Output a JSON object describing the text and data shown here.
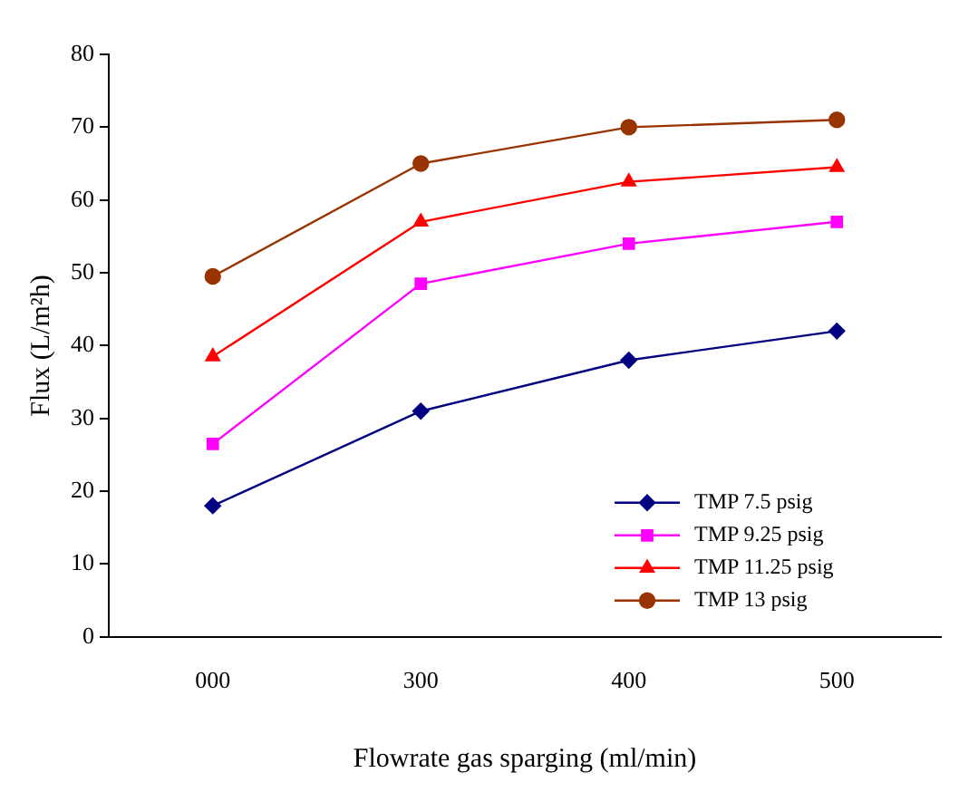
{
  "chart_data": {
    "type": "line",
    "xlabel": "Flowrate gas sparging (ml/min)",
    "ylabel": "Flux (L/m²h)",
    "categories": [
      "000",
      "300",
      "400",
      "500"
    ],
    "series": [
      {
        "name": "TMP 7.5 psig",
        "color": "#000080",
        "marker": "diamond",
        "values": [
          18,
          31,
          38,
          42
        ]
      },
      {
        "name": "TMP 9.25 psig",
        "color": "#ff00ff",
        "marker": "square",
        "values": [
          26.5,
          48.5,
          54,
          57
        ]
      },
      {
        "name": "TMP 11.25 psig",
        "color": "#ff0000",
        "marker": "triangle",
        "values": [
          38.5,
          57,
          62.5,
          64.5
        ]
      },
      {
        "name": "TMP 13 psig",
        "color": "#993300",
        "marker": "circle",
        "values": [
          49.5,
          65,
          70,
          71
        ]
      }
    ],
    "ylim": [
      0,
      80
    ],
    "yticks": [
      0,
      10,
      20,
      30,
      40,
      50,
      60,
      70,
      80
    ],
    "grid": false,
    "legend": "bottom right",
    "line_style": "solid"
  }
}
